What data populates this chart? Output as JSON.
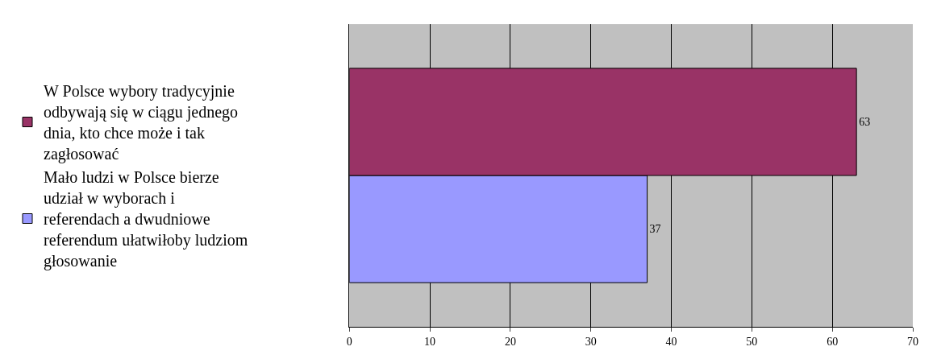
{
  "chart_data": {
    "type": "bar",
    "orientation": "horizontal",
    "categories": [
      null
    ],
    "series": [
      {
        "name": "W Polsce wybory tradycyjnie odbywają się w ciągu jednego dnia, kto chce może i tak zagłosować",
        "color": "#993366",
        "values": [
          63
        ]
      },
      {
        "name": "Mało ludzi w Polsce bierze udział w wyborach i referendach a dwudniowe referendum ułatwiłoby ludziom głosowanie",
        "color": "#9999ff",
        "values": [
          37
        ]
      }
    ],
    "xlim": [
      0,
      70
    ],
    "xticks": [
      0,
      10,
      20,
      30,
      40,
      50,
      60,
      70
    ],
    "grid": "x",
    "legend": "left",
    "data_labels": true
  }
}
